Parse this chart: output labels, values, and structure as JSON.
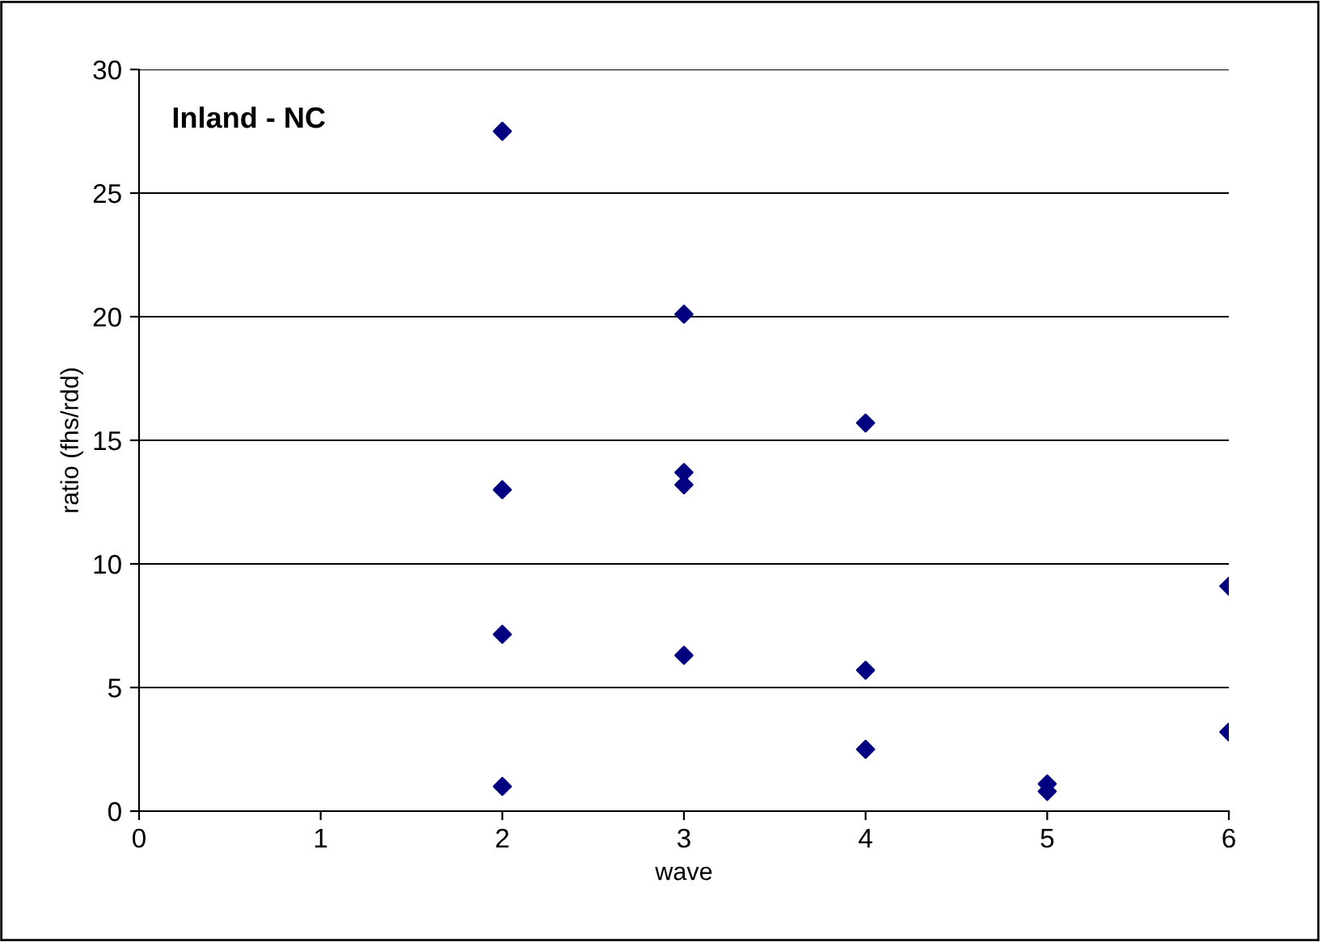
{
  "chart_data": {
    "type": "scatter",
    "title": "Inland - NC",
    "xlabel": "wave",
    "ylabel": "ratio (fhs/rdd)",
    "x": [
      2,
      2,
      2,
      2,
      3,
      3,
      3,
      3,
      4,
      4,
      4,
      5,
      5,
      6,
      6
    ],
    "series": [
      {
        "color": "#000080",
        "values": [
          27.5,
          13.0,
          7.15,
          1.0,
          20.1,
          13.7,
          13.2,
          6.3,
          15.7,
          5.7,
          2.5,
          1.1,
          0.8,
          9.1,
          3.2
        ]
      }
    ],
    "xlim": [
      0,
      6
    ],
    "xticks": [
      0,
      1,
      2,
      3,
      4,
      5,
      6
    ],
    "ylim": [
      0,
      30
    ],
    "yticks": [
      0,
      5,
      10,
      15,
      20,
      25,
      30
    ],
    "grid": "y",
    "marker": "diamond",
    "legend": false
  }
}
